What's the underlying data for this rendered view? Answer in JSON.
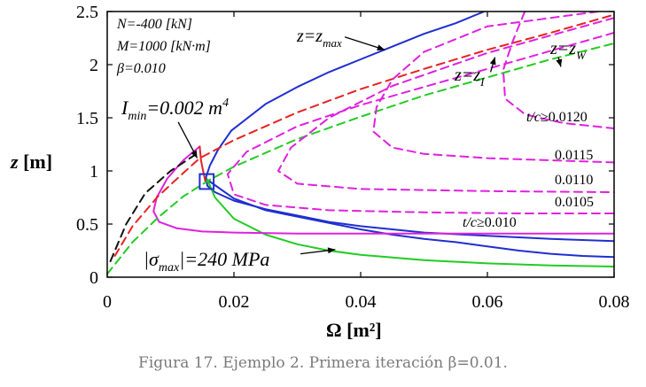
{
  "chart_data": {
    "type": "line",
    "xlabel": "Ω [m²]",
    "ylabel": "z [m]",
    "xlim": [
      0,
      0.08
    ],
    "ylim": [
      0,
      2.5
    ],
    "xticks": [
      0,
      0.02,
      0.04,
      0.06,
      0.08
    ],
    "xtick_labels": [
      "0",
      "0.02",
      "0.04",
      "0.06",
      "0.08"
    ],
    "yticks": [
      0,
      0.5,
      1,
      1.5,
      2,
      2.5
    ],
    "ytick_labels": [
      "0",
      "0.5",
      "1",
      "1.5",
      "2",
      "2.5"
    ],
    "grid": false,
    "params": [
      "N=-400 [kN]",
      "M=1000 [kN·m]",
      "β=0.010"
    ],
    "series": [
      {
        "name": "z=z_max",
        "color": "#1f2fd0",
        "dash": "solid",
        "width": 2,
        "points": [
          [
            0.0196,
            1.38
          ],
          [
            0.025,
            1.63
          ],
          [
            0.03,
            1.79
          ],
          [
            0.035,
            1.93
          ],
          [
            0.04,
            2.05
          ],
          [
            0.045,
            2.17
          ],
          [
            0.05,
            2.29
          ],
          [
            0.055,
            2.39
          ],
          [
            0.0595,
            2.5
          ]
        ]
      },
      {
        "name": "",
        "color": "#1f2fd0",
        "dash": "solid",
        "width": 2,
        "points": [
          [
            0.0196,
            1.38
          ],
          [
            0.0175,
            1.2
          ],
          [
            0.0162,
            1.05
          ],
          [
            0.0156,
            0.94
          ],
          [
            0.0158,
            0.86
          ],
          [
            0.017,
            0.8
          ],
          [
            0.02,
            0.72
          ],
          [
            0.025,
            0.64
          ],
          [
            0.03,
            0.58
          ],
          [
            0.035,
            0.52
          ],
          [
            0.04,
            0.48
          ],
          [
            0.045,
            0.45
          ],
          [
            0.05,
            0.42
          ],
          [
            0.06,
            0.39
          ],
          [
            0.07,
            0.36
          ],
          [
            0.08,
            0.34
          ]
        ]
      },
      {
        "name": "",
        "color": "#1f2fd0",
        "dash": "solid",
        "width": 2,
        "points": [
          [
            0.0162,
            0.9
          ],
          [
            0.02,
            0.74
          ],
          [
            0.025,
            0.63
          ],
          [
            0.03,
            0.57
          ],
          [
            0.035,
            0.51
          ],
          [
            0.04,
            0.45
          ],
          [
            0.045,
            0.4
          ],
          [
            0.05,
            0.36
          ],
          [
            0.055,
            0.33
          ],
          [
            0.06,
            0.29
          ],
          [
            0.065,
            0.25
          ],
          [
            0.07,
            0.22
          ],
          [
            0.075,
            0.2
          ],
          [
            0.08,
            0.19
          ]
        ]
      },
      {
        "name": "|σ_max|=240 MPa",
        "color": "#22cc22",
        "dash": "solid",
        "width": 2,
        "points": [
          [
            0.0158,
            0.92
          ],
          [
            0.017,
            0.75
          ],
          [
            0.02,
            0.55
          ],
          [
            0.025,
            0.4
          ],
          [
            0.03,
            0.31
          ],
          [
            0.035,
            0.25
          ],
          [
            0.04,
            0.21
          ],
          [
            0.05,
            0.16
          ],
          [
            0.06,
            0.13
          ],
          [
            0.07,
            0.11
          ],
          [
            0.08,
            0.1
          ]
        ]
      },
      {
        "name": "I_min=0.002 m⁴",
        "color": "#dd22dd",
        "dash": "solid",
        "width": 2,
        "points": [
          [
            0.0146,
            1.23
          ],
          [
            0.012,
            1.1
          ],
          [
            0.0095,
            0.93
          ],
          [
            0.0078,
            0.75
          ],
          [
            0.0073,
            0.62
          ],
          [
            0.0082,
            0.52
          ],
          [
            0.011,
            0.46
          ],
          [
            0.015,
            0.43
          ],
          [
            0.02,
            0.42
          ],
          [
            0.03,
            0.41
          ],
          [
            0.05,
            0.41
          ],
          [
            0.08,
            0.41
          ]
        ]
      },
      {
        "name": "",
        "color": "#e62222",
        "dash": "solid",
        "width": 2,
        "points": [
          [
            0.0146,
            1.23
          ],
          [
            0.0148,
            1.1
          ],
          [
            0.0152,
            0.98
          ],
          [
            0.0155,
            0.9
          ]
        ]
      },
      {
        "name": "z=z_I",
        "color": "#e62222",
        "dash": "dashed",
        "width": 2,
        "points": [
          [
            0.0012,
            0.2
          ],
          [
            0.004,
            0.48
          ],
          [
            0.008,
            0.76
          ],
          [
            0.012,
            0.98
          ],
          [
            0.0146,
            1.12
          ],
          [
            0.02,
            1.29
          ],
          [
            0.03,
            1.55
          ],
          [
            0.04,
            1.77
          ],
          [
            0.05,
            1.96
          ],
          [
            0.06,
            2.14
          ],
          [
            0.07,
            2.3
          ],
          [
            0.08,
            2.47
          ]
        ]
      },
      {
        "name": "z=z_W",
        "color": "#22cc22",
        "dash": "dashed",
        "width": 2,
        "points": [
          [
            0,
            0.03
          ],
          [
            0.004,
            0.33
          ],
          [
            0.008,
            0.56
          ],
          [
            0.012,
            0.76
          ],
          [
            0.016,
            0.91
          ],
          [
            0.02,
            1.04
          ],
          [
            0.03,
            1.3
          ],
          [
            0.04,
            1.51
          ],
          [
            0.05,
            1.71
          ],
          [
            0.06,
            1.88
          ],
          [
            0.07,
            2.05
          ],
          [
            0.08,
            2.2
          ]
        ]
      },
      {
        "name": "",
        "color": "#111111",
        "dash": "dashed",
        "width": 2,
        "points": [
          [
            0.0005,
            0.15
          ],
          [
            0.003,
            0.5
          ],
          [
            0.006,
            0.79
          ],
          [
            0.01,
            1.0
          ],
          [
            0.0146,
            1.18
          ]
        ]
      },
      {
        "name": "t/c≥0.0120",
        "color": "#e020e0",
        "dash": "dashed",
        "width": 2,
        "points": [
          [
            0.0659,
            2.5
          ],
          [
            0.064,
            2.22
          ],
          [
            0.0625,
            1.95
          ],
          [
            0.0628,
            1.68
          ],
          [
            0.066,
            1.53
          ],
          [
            0.072,
            1.45
          ],
          [
            0.08,
            1.4
          ]
        ]
      },
      {
        "name": "0.0115",
        "color": "#e020e0",
        "dash": "dashed",
        "width": 2,
        "points": [
          [
            0.0775,
            2.5
          ],
          [
            0.06,
            2.36
          ],
          [
            0.05,
            2.12
          ],
          [
            0.045,
            1.86
          ],
          [
            0.0425,
            1.6
          ],
          [
            0.042,
            1.37
          ],
          [
            0.045,
            1.22
          ],
          [
            0.05,
            1.16
          ],
          [
            0.06,
            1.12
          ],
          [
            0.07,
            1.1
          ],
          [
            0.08,
            1.08
          ]
        ]
      },
      {
        "name": "0.0110",
        "color": "#e020e0",
        "dash": "dashed",
        "width": 2,
        "points": [
          [
            0.08,
            2.44
          ],
          [
            0.06,
            2.11
          ],
          [
            0.045,
            1.8
          ],
          [
            0.035,
            1.5
          ],
          [
            0.029,
            1.22
          ],
          [
            0.027,
            1.0
          ],
          [
            0.03,
            0.88
          ],
          [
            0.04,
            0.83
          ],
          [
            0.06,
            0.81
          ],
          [
            0.08,
            0.8
          ]
        ]
      },
      {
        "name": "0.0105",
        "color": "#e020e0",
        "dash": "dashed",
        "width": 2,
        "points": [
          [
            0.08,
            2.3
          ],
          [
            0.06,
            1.96
          ],
          [
            0.04,
            1.62
          ],
          [
            0.03,
            1.42
          ],
          [
            0.022,
            1.18
          ],
          [
            0.019,
            0.97
          ],
          [
            0.02,
            0.78
          ],
          [
            0.025,
            0.68
          ],
          [
            0.035,
            0.63
          ],
          [
            0.05,
            0.61
          ],
          [
            0.065,
            0.6
          ],
          [
            0.08,
            0.6
          ]
        ]
      }
    ],
    "annotations": [
      {
        "text": "z=z_max",
        "x": 0.0295,
        "y": 2.21
      },
      {
        "text": "z=z_I",
        "x": 0.0545,
        "y": 1.88
      },
      {
        "text": "z=z_W",
        "x": 0.0683,
        "y": 2.11
      },
      {
        "text": "t/c≥0.0120",
        "x": 0.0675,
        "y": 1.46
      },
      {
        "text": "0.0115",
        "x": 0.071,
        "y": 1.1
      },
      {
        "text": "0.0110",
        "x": 0.071,
        "y": 0.86
      },
      {
        "text": "0.0105",
        "x": 0.071,
        "y": 0.64
      },
      {
        "text": "t/c≥0.010",
        "x": 0.0555,
        "y": 0.47
      },
      {
        "text": "I_min=0.002 m⁴",
        "x": 0.002,
        "y": 1.5
      },
      {
        "text": "|σ_max|=240 MPa",
        "x": 0.0059,
        "y": 0.1
      }
    ],
    "highlight_box": {
      "x": [
        0.0146,
        0.0168
      ],
      "y": [
        0.83,
        0.97
      ]
    }
  },
  "caption": "Figura 17. Ejemplo 2. Primera iteración β=0.01."
}
